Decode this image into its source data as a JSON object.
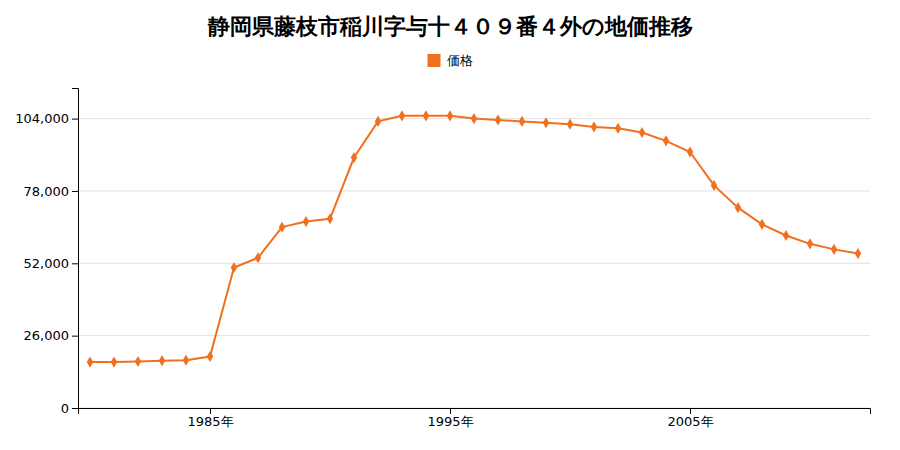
{
  "chart_data": {
    "type": "line",
    "title": "静岡県藤枝市稲川字与十４０９番４外の地価推移",
    "x": [
      1980,
      1981,
      1982,
      1983,
      1984,
      1985,
      1986,
      1987,
      1988,
      1989,
      1990,
      1991,
      1992,
      1993,
      1994,
      1995,
      1996,
      1997,
      1998,
      1999,
      2000,
      2001,
      2002,
      2003,
      2004,
      2005,
      2006,
      2007,
      2008,
      2009,
      2010,
      2011,
      2012
    ],
    "series": [
      {
        "name": "価格",
        "color": "#f07020",
        "marker": "diamond",
        "values": [
          16500,
          16500,
          16700,
          17000,
          17200,
          18500,
          50500,
          54000,
          65000,
          67000,
          68000,
          90000,
          103000,
          105000,
          105000,
          105000,
          104000,
          103500,
          103000,
          102500,
          102000,
          101000,
          100500,
          99000,
          96000,
          92000,
          80000,
          72000,
          66000,
          62000,
          59000,
          57000,
          55500
        ]
      }
    ],
    "xlim": [
      1979.5,
      2012.5
    ],
    "xticks": [
      {
        "value": 1985,
        "label": "1985年"
      },
      {
        "value": 1995,
        "label": "1995年"
      },
      {
        "value": 2005,
        "label": "2005年"
      }
    ],
    "ylim": [
      0,
      115000
    ],
    "yticks": [
      0,
      {
        "value": 26000,
        "label": "26,000"
      },
      {
        "value": 52000,
        "label": "52,000"
      },
      {
        "value": 78000,
        "label": "78,000"
      },
      {
        "value": 104000,
        "label": "104,000"
      }
    ],
    "grid": "y",
    "legend": "top"
  }
}
